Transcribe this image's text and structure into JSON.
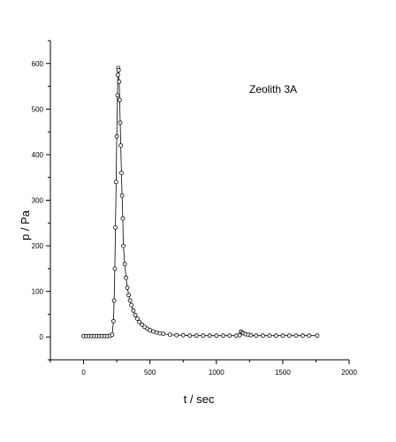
{
  "chart_data": {
    "type": "scatter",
    "title": "",
    "xlabel": "t / sec",
    "ylabel": "p / Pa",
    "xlim": [
      -250,
      2000
    ],
    "ylim": [
      -50,
      650
    ],
    "xticks": [
      0,
      500,
      1000,
      1500,
      2000
    ],
    "yticks": [
      0,
      100,
      200,
      300,
      400,
      500,
      600
    ],
    "grid": false,
    "annotation": "Zeolith 3A",
    "marker": "open-circle",
    "series": [
      {
        "x": [
          0,
          20,
          40,
          60,
          80,
          100,
          120,
          140,
          160,
          180,
          200,
          215,
          225,
          230,
          235,
          240,
          245,
          250,
          255,
          258,
          261,
          264,
          268,
          272,
          276,
          280,
          285,
          290,
          295,
          300,
          310,
          320,
          330,
          340,
          350,
          360,
          375,
          390,
          405,
          420,
          440,
          460,
          480,
          500,
          525,
          550,
          575,
          600,
          650,
          700,
          750,
          800,
          850,
          900,
          950,
          1000,
          1050,
          1100,
          1150,
          1175,
          1185,
          1195,
          1205,
          1220,
          1240,
          1260,
          1300,
          1350,
          1400,
          1450,
          1500,
          1550,
          1600,
          1650,
          1700,
          1760
        ],
        "y": [
          2,
          2,
          2,
          2,
          2,
          2,
          2,
          2,
          2,
          2,
          3,
          5,
          35,
          80,
          150,
          240,
          340,
          440,
          530,
          575,
          590,
          585,
          560,
          520,
          470,
          420,
          360,
          310,
          260,
          200,
          160,
          130,
          108,
          92,
          80,
          70,
          58,
          48,
          40,
          33,
          27,
          22,
          18,
          15,
          12,
          10,
          8,
          7,
          5,
          4,
          4,
          3,
          3,
          3,
          3,
          3,
          3,
          3,
          3,
          4,
          12,
          10,
          8,
          6,
          5,
          4,
          3,
          3,
          3,
          3,
          3,
          3,
          3,
          3,
          3,
          3
        ]
      }
    ]
  }
}
